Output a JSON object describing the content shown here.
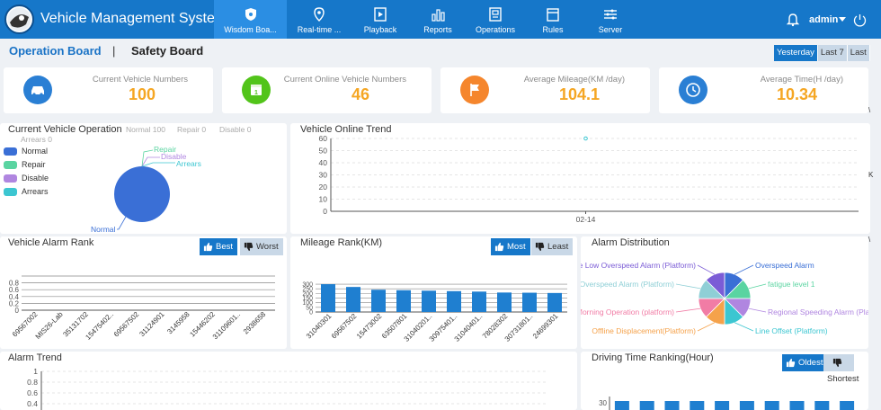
{
  "header": {
    "title": "Vehicle Management System",
    "user": "admin",
    "nav": [
      {
        "label": "Wisdom Boa...",
        "icon": "shield-icon",
        "active": true
      },
      {
        "label": "Real-time ...",
        "icon": "location-pin-icon",
        "active": false
      },
      {
        "label": "Playback",
        "icon": "playback-icon",
        "active": false
      },
      {
        "label": "Reports",
        "icon": "bar-chart-icon",
        "active": false
      },
      {
        "label": "Operations",
        "icon": "operations-icon",
        "active": false
      },
      {
        "label": "Rules",
        "icon": "rules-icon",
        "active": false
      },
      {
        "label": "Server",
        "icon": "server-icon",
        "active": false
      }
    ]
  },
  "tabs": {
    "operation": "Operation Board",
    "separator": "|",
    "safety": "Safety Board"
  },
  "range": {
    "yesterday": "Yesterday",
    "last7": "Last 7",
    "last": "Last"
  },
  "stats": [
    {
      "label": "Current Vehicle Numbers",
      "value": "100",
      "icon": "car-icon",
      "color": "#2a7fd4"
    },
    {
      "label": "Current Online Vehicle Numbers",
      "value": "46",
      "icon": "calendar-icon",
      "color": "#52c41a"
    },
    {
      "label": "Average Mileage(KM /day)",
      "value": "104.1",
      "icon": "flag-icon",
      "color": "#f5862d"
    },
    {
      "label": "Average Time(H /day)",
      "value": "10.34",
      "icon": "clock-icon",
      "color": "#2a7fd4"
    }
  ],
  "vehicle_operation": {
    "title": "Current Vehicle Operation",
    "summary": {
      "normal": "Normal 100",
      "repair": "Repair 0",
      "disable": "Disable 0",
      "arrears": "Arrears 0"
    },
    "legend": [
      {
        "name": "Normal",
        "color": "#3a6fd6"
      },
      {
        "name": "Repair",
        "color": "#5ad4a1"
      },
      {
        "name": "Disable",
        "color": "#b086e0"
      },
      {
        "name": "Arrears",
        "color": "#3cc6d1"
      }
    ],
    "pie_labels": {
      "repair": "Repair",
      "disable": "Disable",
      "arrears": "Arrears",
      "normal": "Normal"
    }
  },
  "online_trend": {
    "title": "Vehicle Online Trend",
    "chart_data": {
      "type": "line",
      "x": [
        "02-14"
      ],
      "values": [
        60
      ],
      "yticks": [
        "0",
        "10",
        "20",
        "30",
        "40",
        "50",
        "60"
      ],
      "ylim": [
        0,
        60
      ]
    }
  },
  "alarm_rank": {
    "title": "Vehicle Alarm Rank",
    "best": "Best",
    "worst": "Worst",
    "chart_data": {
      "type": "bar",
      "categories": [
        "69567002",
        "MIS26-Lab",
        "35131702",
        "15475402..",
        "69567502",
        "31124901",
        "3145958",
        "15446202",
        "31109601..",
        "2938658"
      ],
      "values": [
        0,
        0,
        0,
        0,
        0,
        0,
        0,
        0,
        0,
        0
      ],
      "yticks": [
        "0",
        "0.2",
        "0.4",
        "0.6",
        "0.8"
      ],
      "ylim": [
        0,
        1
      ]
    }
  },
  "mileage_rank": {
    "title": "Mileage Rank(KM)",
    "most": "Most",
    "least": "Least",
    "chart_data": {
      "type": "bar",
      "categories": [
        "31040301",
        "69567502",
        "15473002",
        "63507801",
        "31040201..",
        "30975401..",
        "31040401..",
        "78028302",
        "30731801..",
        "24699301"
      ],
      "values": [
        300,
        270,
        240,
        235,
        230,
        225,
        220,
        210,
        208,
        205
      ],
      "yticks": [
        "0",
        "50",
        "100",
        "150",
        "200",
        "250",
        "300"
      ],
      "ylim": [
        0,
        320
      ]
    }
  },
  "alarm_distribution": {
    "title": "Alarm Distribution",
    "chart_data": {
      "type": "pie",
      "slices": [
        {
          "name": "Overspeed Alarm",
          "value": 1,
          "color": "#3a6fd6"
        },
        {
          "name": "fatigue level 1",
          "value": 1,
          "color": "#5ad4a1"
        },
        {
          "name": "Regional Speeding Alarm (Platform)",
          "value": 1,
          "color": "#b086e0"
        },
        {
          "name": "Line Offset (Platform)",
          "value": 1,
          "color": "#3cc6d1"
        },
        {
          "name": "Offline Displacement(Platform)",
          "value": 1,
          "color": "#f5a24b"
        },
        {
          "name": "Morning Operation (platform)",
          "value": 1,
          "color": "#f17ca5"
        },
        {
          "name": "ne Overspeed Alarm (Platform)",
          "value": 1,
          "color": "#8fcfd6"
        },
        {
          "name": "e Low Overspeed Alarm (Platform)",
          "value": 1,
          "color": "#7b5cd6"
        }
      ]
    }
  },
  "alarm_trend": {
    "title": "Alarm Trend",
    "chart_data": {
      "type": "line",
      "yticks": [
        "0.4",
        "0.6",
        "0.8",
        "1"
      ],
      "ylim": [
        0,
        1
      ]
    }
  },
  "driving_time": {
    "title": "Driving Time Ranking(Hour)",
    "oldest": "Oldest",
    "shortest": "Shortest",
    "chart_data": {
      "type": "bar",
      "yticks": [
        "30"
      ],
      "values": [
        30,
        30,
        30,
        30,
        30,
        30,
        30,
        30,
        30,
        30
      ]
    }
  },
  "side_fragments": [
    "\\",
    "K",
    "\\"
  ]
}
